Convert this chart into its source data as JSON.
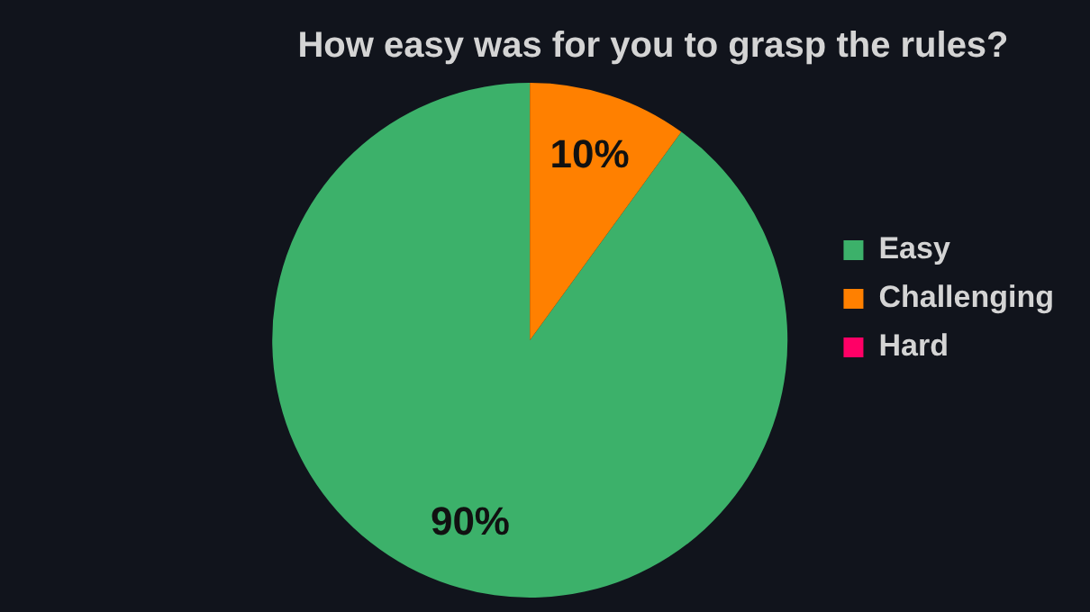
{
  "chart_data": {
    "type": "pie",
    "title": "How easy was for you to grasp the rules?",
    "categories": [
      "Easy",
      "Challenging",
      "Hard"
    ],
    "values": [
      90,
      10,
      0
    ],
    "value_labels": [
      "90%",
      "10%",
      null
    ],
    "colors": [
      "#3cb16a",
      "#ff8000",
      "#ff0066"
    ],
    "legend": "right"
  }
}
